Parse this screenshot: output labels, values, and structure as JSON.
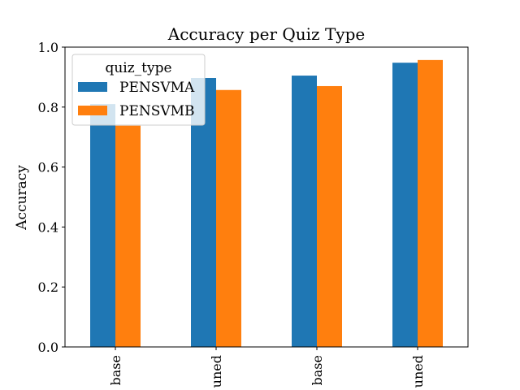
{
  "chart_data": {
    "type": "bar",
    "title": "Accuracy per Quiz Type",
    "xlabel": "",
    "ylabel": "Accuracy",
    "categories": [
      "base",
      "tuned",
      "base",
      "tuned"
    ],
    "category_labels_visible": [
      "base",
      "uned",
      "base",
      "uned"
    ],
    "ylim": [
      0,
      1.0
    ],
    "yticks": [
      0.0,
      0.2,
      0.4,
      0.6,
      0.8,
      1.0
    ],
    "ytick_labels": [
      "0.0",
      "0.2",
      "0.4",
      "0.6",
      "0.8",
      "1.0"
    ],
    "grid": false,
    "legend": {
      "title": "quiz_type",
      "placement": "upper-left"
    },
    "series": [
      {
        "name": "PENSVMA",
        "color": "#1f77b4",
        "values": [
          0.81,
          0.897,
          0.905,
          0.948
        ]
      },
      {
        "name": "PENSVMB",
        "color": "#ff7f0e",
        "values": [
          0.738,
          0.857,
          0.87,
          0.957
        ]
      }
    ]
  }
}
